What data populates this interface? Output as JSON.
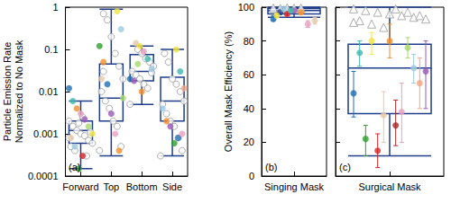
{
  "chart_data": [
    {
      "type": "boxplot",
      "panel_label": "(a)",
      "y_label": "Particle Emission Rate\nNormalized to No Mask",
      "categories": [
        "Forward",
        "Top",
        "Bottom",
        "Side"
      ],
      "log": "y",
      "grid": false,
      "ylim": [
        0.0001,
        1
      ],
      "yticks": [
        0.0001,
        0.001,
        0.01,
        0.1,
        1
      ],
      "box_color": "#1f3d8a",
      "boxes": [
        [
          0.00015,
          0.0006,
          0.0012,
          0.002,
          0.006
        ],
        [
          0.0003,
          0.002,
          0.007,
          0.045,
          0.9
        ],
        [
          0.005,
          0.018,
          0.03,
          0.075,
          0.12
        ],
        [
          0.0003,
          0.002,
          0.006,
          0.022,
          0.1
        ]
      ],
      "series": [
        {
          "marker": "open_circle",
          "color": "#9a9a9a",
          "values": [
            [
              "Forward",
              0.002
            ],
            [
              "Forward",
              0.0015
            ],
            [
              "Forward",
              0.0012
            ],
            [
              "Forward",
              0.001
            ],
            [
              "Forward",
              0.0009
            ],
            [
              "Forward",
              0.0007
            ],
            [
              "Forward",
              0.0006
            ],
            [
              "Forward",
              0.0005
            ],
            [
              "Forward",
              0.0004
            ],
            [
              "Forward",
              0.0018
            ],
            [
              "Forward",
              0.0025
            ],
            [
              "Forward",
              0.0003
            ],
            [
              "Forward",
              0.0011
            ],
            [
              "Forward",
              0.0008
            ],
            [
              "Top",
              0.7
            ],
            [
              "Top",
              0.5
            ],
            [
              "Top",
              0.2
            ],
            [
              "Top",
              0.08
            ],
            [
              "Top",
              0.04
            ],
            [
              "Top",
              0.02
            ],
            [
              "Top",
              0.01
            ],
            [
              "Top",
              0.006
            ],
            [
              "Top",
              0.004
            ],
            [
              "Top",
              0.002
            ],
            [
              "Top",
              0.0015
            ],
            [
              "Top",
              0.0005
            ],
            [
              "Top",
              0.0004
            ],
            [
              "Top",
              0.03
            ],
            [
              "Bottom",
              0.1
            ],
            [
              "Bottom",
              0.08
            ],
            [
              "Bottom",
              0.06
            ],
            [
              "Bottom",
              0.05
            ],
            [
              "Bottom",
              0.04
            ],
            [
              "Bottom",
              0.03
            ],
            [
              "Bottom",
              0.025
            ],
            [
              "Bottom",
              0.02
            ],
            [
              "Bottom",
              0.015
            ],
            [
              "Bottom",
              0.012
            ],
            [
              "Bottom",
              0.028
            ],
            [
              "Bottom",
              0.005
            ],
            [
              "Side",
              0.08
            ],
            [
              "Side",
              0.05
            ],
            [
              "Side",
              0.02
            ],
            [
              "Side",
              0.015
            ],
            [
              "Side",
              0.01
            ],
            [
              "Side",
              0.006
            ],
            [
              "Side",
              0.005
            ],
            [
              "Side",
              0.003
            ],
            [
              "Side",
              0.002
            ],
            [
              "Side",
              0.0015
            ],
            [
              "Side",
              0.0008
            ],
            [
              "Side",
              0.0004
            ],
            [
              "Side",
              0.0003
            ]
          ]
        },
        {
          "marker": "circle",
          "colors": [
            "#1f6fb4",
            "#3fb8af",
            "#f28e2b",
            "#e8a0c0",
            "#9b59b6",
            "#a6d96a",
            "#f0e442",
            "#e6c9a8",
            "#9ecae1",
            "#2ca02c",
            "#d62728",
            "#f0e442",
            "#9ecae1",
            "#2ca02c",
            "#f28e2b",
            "#1f6fb4",
            "#9b59b6",
            "#e8a0c0",
            "#f28e2b",
            "#a6d96a",
            "#e6c9a8",
            "#e6c9a8",
            "#f0e442",
            "#e8a0c0",
            "#3fb8af",
            "#9ecae1",
            "#1f6fb4",
            "#9b59b6",
            "#a6d96a",
            "#f28e2b",
            "#f0e442",
            "#3fb8af",
            "#f4a582",
            "#9ecae1",
            "#f28e2b",
            "#9b59b6",
            "#2ca02c",
            "#1f6fb4",
            "#e8a0c0"
          ],
          "values": [
            [
              "Forward",
              0.012
            ],
            [
              "Forward",
              0.006
            ],
            [
              "Forward",
              0.004
            ],
            [
              "Forward",
              0.003
            ],
            [
              "Forward",
              0.0022
            ],
            [
              "Forward",
              0.0015
            ],
            [
              "Forward",
              0.001
            ],
            [
              "Forward",
              0.0008
            ],
            [
              "Forward",
              0.0005
            ],
            [
              "Forward",
              0.00015
            ],
            [
              "Forward",
              0.0003
            ],
            [
              "Top",
              0.8
            ],
            [
              "Top",
              0.3
            ],
            [
              "Top",
              0.12
            ],
            [
              "Top",
              0.05
            ],
            [
              "Top",
              0.015
            ],
            [
              "Top",
              0.003
            ],
            [
              "Top",
              0.001
            ],
            [
              "Top",
              0.0004
            ],
            [
              "Top",
              0.007
            ],
            [
              "Top",
              0.02
            ],
            [
              "Bottom",
              0.14
            ],
            [
              "Bottom",
              0.12
            ],
            [
              "Bottom",
              0.09
            ],
            [
              "Bottom",
              0.06
            ],
            [
              "Bottom",
              0.035
            ],
            [
              "Bottom",
              0.02
            ],
            [
              "Bottom",
              0.018
            ],
            [
              "Bottom",
              0.045
            ],
            [
              "Bottom",
              0.01
            ],
            [
              "Side",
              0.1
            ],
            [
              "Side",
              0.03
            ],
            [
              "Side",
              0.012
            ],
            [
              "Side",
              0.004
            ],
            [
              "Side",
              0.002
            ],
            [
              "Side",
              0.0015
            ],
            [
              "Side",
              0.0006
            ],
            [
              "Side",
              0.0008
            ],
            [
              "Side",
              0.001
            ]
          ]
        }
      ]
    },
    {
      "type": "boxplot",
      "panel_label": "(b)",
      "y_label": "Overall Mask Efficiency (%)",
      "categories": [
        "Singing Mask"
      ],
      "grid": false,
      "ylim": [
        0,
        100
      ],
      "yticks": [
        0,
        20,
        40,
        60,
        80,
        100
      ],
      "box_color": "#1f3d8a",
      "boxes": [
        [
          94,
          96,
          98,
          99.2,
          100
        ]
      ],
      "series": [
        {
          "marker": "open_triangle",
          "color": "#9a9a9a",
          "values": [
            [
              "Singing Mask",
              99.5
            ],
            [
              "Singing Mask",
              99.3
            ],
            [
              "Singing Mask",
              99.6
            ],
            [
              "Singing Mask",
              99.4
            ],
            [
              "Singing Mask",
              99.5
            ]
          ]
        },
        {
          "marker": "circle",
          "colors": [
            "#1f6fb4",
            "#1f3d8a",
            "#d62728",
            "#9b59b6",
            "#f28e2b",
            "#e8a0c0",
            "#e6c9a8",
            "#f0e442",
            "#9ecae1",
            "#3fb8af"
          ],
          "values": [
            [
              "Singing Mask",
              93
            ],
            [
              "Singing Mask",
              97
            ],
            [
              "Singing Mask",
              96
            ],
            [
              "Singing Mask",
              98
            ],
            [
              "Singing Mask",
              97
            ],
            [
              "Singing Mask",
              90
            ],
            [
              "Singing Mask",
              92
            ],
            [
              "Singing Mask",
              95
            ],
            [
              "Singing Mask",
              99
            ],
            [
              "Singing Mask",
              98
            ]
          ],
          "errors": [
            [
              92,
              95
            ],
            [
              96,
              98
            ],
            [
              95,
              97
            ],
            [
              97,
              99
            ],
            [
              96,
              98
            ],
            [
              88,
              92
            ],
            [
              90,
              94
            ],
            [
              94,
              96
            ],
            [
              98,
              100
            ],
            [
              97,
              99
            ]
          ]
        }
      ]
    },
    {
      "type": "boxplot",
      "panel_label": "(c)",
      "categories": [
        "Surgical Mask"
      ],
      "grid": false,
      "tick_labels": "x",
      "ylim": [
        0,
        100
      ],
      "yticks": [
        0,
        20,
        40,
        60,
        80,
        100
      ],
      "box_color": "#1f3d8a",
      "boxes": [
        [
          12,
          37,
          64,
          78,
          100
        ]
      ],
      "series": [
        {
          "marker": "open_triangle",
          "color": "#9a9a9a",
          "values": [
            [
              "Surgical Mask",
              99
            ],
            [
              "Surgical Mask",
              98
            ],
            [
              "Surgical Mask",
              97
            ],
            [
              "Surgical Mask",
              96
            ],
            [
              "Surgical Mask",
              95
            ],
            [
              "Surgical Mask",
              94
            ],
            [
              "Surgical Mask",
              93
            ],
            [
              "Surgical Mask",
              92
            ],
            [
              "Surgical Mask",
              90
            ],
            [
              "Surgical Mask",
              88
            ],
            [
              "Surgical Mask",
              99
            ],
            [
              "Surgical Mask",
              97
            ],
            [
              "Surgical Mask",
              95
            ],
            [
              "Surgical Mask",
              91
            ]
          ]
        },
        {
          "marker": "circle",
          "colors": [
            "#1f6fb4",
            "#2ca02c",
            "#d62728",
            "#f28e2b",
            "#e8a0c0",
            "#9ecae1",
            "#9b59b6",
            "#3fb8af",
            "#f0e442",
            "#e6c9a8",
            "#a52a2a",
            "#a6d96a",
            "#f4a582"
          ],
          "values": [
            [
              "Surgical Mask",
              49
            ],
            [
              "Surgical Mask",
              22
            ],
            [
              "Surgical Mask",
              15
            ],
            [
              "Surgical Mask",
              80
            ],
            [
              "Surgical Mask",
              38
            ],
            [
              "Surgical Mask",
              64
            ],
            [
              "Surgical Mask",
              62
            ],
            [
              "Surgical Mask",
              73
            ],
            [
              "Surgical Mask",
              80
            ],
            [
              "Surgical Mask",
              36
            ],
            [
              "Surgical Mask",
              30
            ],
            [
              "Surgical Mask",
              76
            ],
            [
              "Surgical Mask",
              55
            ]
          ],
          "errors": [
            [
              35,
              62
            ],
            [
              12,
              30
            ],
            [
              5,
              25
            ],
            [
              70,
              90
            ],
            [
              20,
              55
            ],
            [
              55,
              72
            ],
            [
              40,
              80
            ],
            [
              65,
              80
            ],
            [
              72,
              85
            ],
            [
              20,
              50
            ],
            [
              18,
              45
            ],
            [
              70,
              82
            ],
            [
              40,
              70
            ]
          ]
        }
      ]
    }
  ]
}
